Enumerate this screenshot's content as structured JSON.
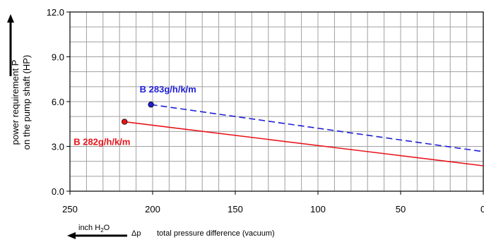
{
  "chart_data": {
    "type": "line",
    "x_label": "total pressure difference (vacuum)",
    "x_symbol": "Δp",
    "x_unit": "inch H",
    "x_unit_sub": "2",
    "x_unit_tail": "O",
    "y_label_line1": "power requirement P",
    "y_label_line2": "on the pump shaft (HP)",
    "xlim": [
      250,
      0
    ],
    "ylim": [
      0,
      12
    ],
    "x_ticks": [
      250,
      200,
      150,
      100,
      50,
      0
    ],
    "x_tick_labels": [
      "250",
      "200",
      "150",
      "100",
      "50",
      "0"
    ],
    "y_ticks": [
      0,
      3,
      6,
      9,
      12
    ],
    "y_tick_labels": [
      "0.0",
      "3.0",
      "6.0",
      "9.0",
      "12.0"
    ],
    "grid": true,
    "series": [
      {
        "name": "B 283g/h/k/m",
        "color": "#1f1fd6",
        "dash": "dashed",
        "x": [
          201,
          0
        ],
        "y": [
          5.8,
          2.65
        ]
      },
      {
        "name": "B 282g/h/k/m",
        "color": "#e8141a",
        "dash": "solid",
        "x": [
          217,
          0
        ],
        "y": [
          4.65,
          1.7
        ]
      }
    ]
  }
}
